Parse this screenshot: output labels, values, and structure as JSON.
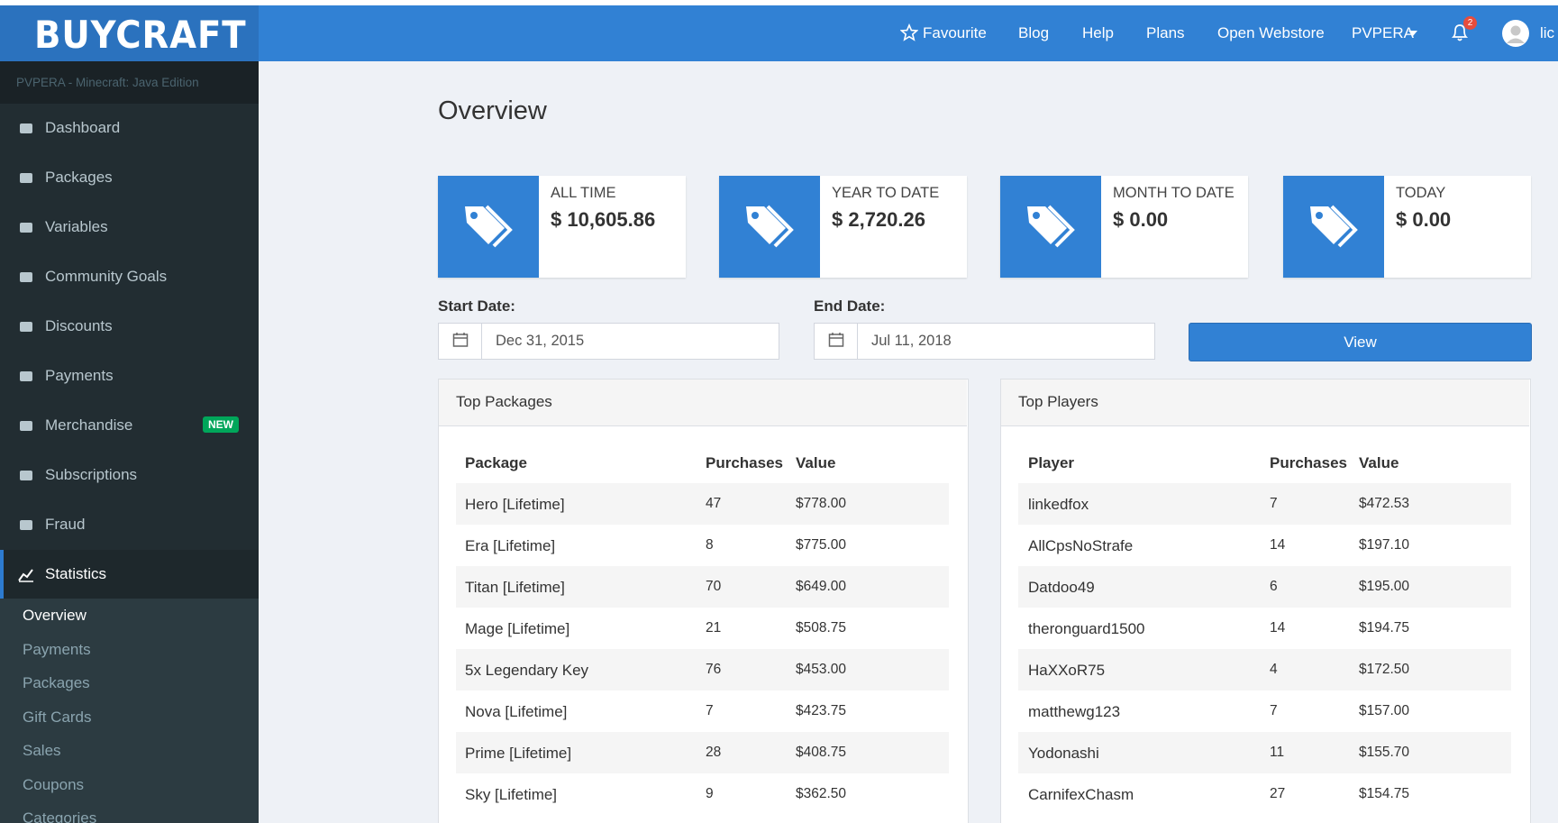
{
  "header": {
    "logo": "BUYCRAFT",
    "nav": [
      "Favourite",
      "Blog",
      "Help",
      "Plans",
      "Open Webstore",
      "PVPERA"
    ],
    "notifications": "2",
    "user": "lic"
  },
  "sidebar": {
    "server": "PVPERA - Minecraft: Java Edition",
    "menu": [
      {
        "label": "Dashboard"
      },
      {
        "label": "Packages"
      },
      {
        "label": "Variables"
      },
      {
        "label": "Community Goals"
      },
      {
        "label": "Discounts"
      },
      {
        "label": "Payments"
      },
      {
        "label": "Merchandise",
        "badge": "NEW"
      },
      {
        "label": "Subscriptions"
      },
      {
        "label": "Fraud"
      },
      {
        "label": "Statistics",
        "active": true
      }
    ],
    "submenu": [
      "Overview",
      "Payments",
      "Packages",
      "Gift Cards",
      "Sales",
      "Coupons",
      "Categories"
    ]
  },
  "main": {
    "title": "Overview",
    "stats": [
      {
        "label": "ALL TIME",
        "value": "$ 10,605.86"
      },
      {
        "label": "YEAR TO DATE",
        "value": "$ 2,720.26"
      },
      {
        "label": "MONTH TO DATE",
        "value": "$ 0.00"
      },
      {
        "label": "TODAY",
        "value": "$ 0.00"
      }
    ],
    "start_date": {
      "label": "Start Date:",
      "value": "Dec 31, 2015"
    },
    "end_date": {
      "label": "End Date:",
      "value": "Jul 11, 2018"
    },
    "button": "View",
    "top_packages": {
      "title": "Top Packages",
      "columns": [
        "Package",
        "Purchases",
        "Value"
      ],
      "rows": [
        [
          "Hero [Lifetime]",
          47,
          "$778.00"
        ],
        [
          "Era [Lifetime]",
          8,
          "$775.00"
        ],
        [
          "Titan [Lifetime]",
          70,
          "$649.00"
        ],
        [
          "Mage [Lifetime]",
          21,
          "$508.75"
        ],
        [
          "5x Legendary Key",
          76,
          "$453.00"
        ],
        [
          "Nova [Lifetime]",
          7,
          "$423.75"
        ],
        [
          "Prime [Lifetime]",
          28,
          "$408.75"
        ],
        [
          "Sky [Lifetime]",
          9,
          "$362.50"
        ]
      ]
    },
    "top_players": {
      "title": "Top Players",
      "columns": [
        "Player",
        "Purchases",
        "Value"
      ],
      "rows": [
        [
          "linkedfox",
          7,
          "$472.53"
        ],
        [
          "AllCpsNoStrafe",
          14,
          "$197.10"
        ],
        [
          "Datdoo49",
          6,
          "$195.00"
        ],
        [
          "theronguard1500",
          14,
          "$194.75"
        ],
        [
          "HaXXoR75",
          4,
          "$172.50"
        ],
        [
          "matthewg123",
          7,
          "$157.00"
        ],
        [
          "Yodonashi",
          11,
          "$155.70"
        ],
        [
          "CarnifexChasm",
          27,
          "$154.75"
        ]
      ]
    }
  }
}
